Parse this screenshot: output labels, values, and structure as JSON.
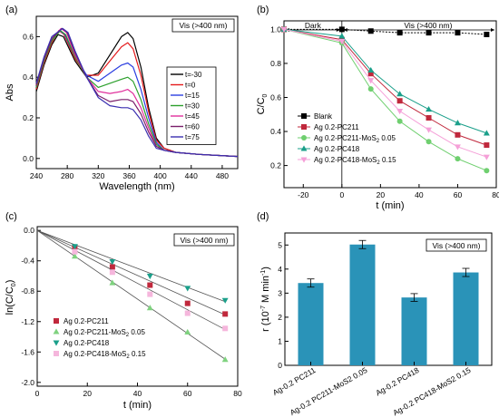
{
  "panels": [
    {
      "tag": "(a)",
      "chart_data": {
        "type": "line",
        "xlabel": "Wavelength (nm)",
        "ylabel": "Abs",
        "xlim": [
          240,
          500
        ],
        "ylim": [
          -0.05,
          0.7
        ],
        "xticks": [
          240,
          280,
          320,
          360,
          400,
          440,
          480
        ],
        "yticks": [
          0.0,
          0.2,
          0.4,
          0.6
        ],
        "ytick_labels": [
          "0.0",
          "0.2",
          "0.4",
          "0.6"
        ],
        "annotation": "Vis (>400 nm)",
        "legend": "center-right",
        "series": [
          {
            "name": "t=-30",
            "color": "#000000",
            "points": [
              [
                240,
                0.33
              ],
              [
                250,
                0.46
              ],
              [
                260,
                0.56
              ],
              [
                268,
                0.61
              ],
              [
                275,
                0.6
              ],
              [
                290,
                0.48
              ],
              [
                305,
                0.4
              ],
              [
                320,
                0.42
              ],
              [
                335,
                0.51
              ],
              [
                350,
                0.6
              ],
              [
                358,
                0.62
              ],
              [
                365,
                0.59
              ],
              [
                375,
                0.45
              ],
              [
                385,
                0.25
              ],
              [
                395,
                0.1
              ],
              [
                405,
                0.05
              ],
              [
                420,
                0.03
              ],
              [
                450,
                0.02
              ],
              [
                500,
                0.01
              ]
            ]
          },
          {
            "name": "t=0",
            "color": "#e41a1c",
            "points": [
              [
                240,
                0.34
              ],
              [
                250,
                0.47
              ],
              [
                260,
                0.57
              ],
              [
                269,
                0.63
              ],
              [
                276,
                0.61
              ],
              [
                290,
                0.49
              ],
              [
                305,
                0.41
              ],
              [
                320,
                0.41
              ],
              [
                335,
                0.48
              ],
              [
                350,
                0.55
              ],
              [
                358,
                0.57
              ],
              [
                365,
                0.54
              ],
              [
                375,
                0.41
              ],
              [
                385,
                0.23
              ],
              [
                395,
                0.09
              ],
              [
                405,
                0.05
              ],
              [
                420,
                0.03
              ],
              [
                450,
                0.02
              ],
              [
                500,
                0.01
              ]
            ]
          },
          {
            "name": "t=15",
            "color": "#2c3fe0",
            "points": [
              [
                240,
                0.35
              ],
              [
                250,
                0.48
              ],
              [
                260,
                0.58
              ],
              [
                270,
                0.63
              ],
              [
                277,
                0.61
              ],
              [
                290,
                0.5
              ],
              [
                305,
                0.41
              ],
              [
                320,
                0.38
              ],
              [
                335,
                0.42
              ],
              [
                350,
                0.46
              ],
              [
                358,
                0.47
              ],
              [
                365,
                0.45
              ],
              [
                375,
                0.34
              ],
              [
                385,
                0.2
              ],
              [
                395,
                0.08
              ],
              [
                405,
                0.04
              ],
              [
                420,
                0.03
              ],
              [
                450,
                0.02
              ],
              [
                500,
                0.01
              ]
            ]
          },
          {
            "name": "t=30",
            "color": "#2ca02c",
            "points": [
              [
                240,
                0.35
              ],
              [
                250,
                0.48
              ],
              [
                260,
                0.58
              ],
              [
                271,
                0.63
              ],
              [
                278,
                0.61
              ],
              [
                290,
                0.5
              ],
              [
                305,
                0.4
              ],
              [
                320,
                0.35
              ],
              [
                335,
                0.37
              ],
              [
                350,
                0.39
              ],
              [
                358,
                0.4
              ],
              [
                365,
                0.38
              ],
              [
                375,
                0.29
              ],
              [
                385,
                0.17
              ],
              [
                395,
                0.07
              ],
              [
                405,
                0.04
              ],
              [
                420,
                0.03
              ],
              [
                450,
                0.02
              ],
              [
                500,
                0.01
              ]
            ]
          },
          {
            "name": "t=45",
            "color": "#e0309c",
            "points": [
              [
                240,
                0.36
              ],
              [
                250,
                0.49
              ],
              [
                260,
                0.59
              ],
              [
                272,
                0.64
              ],
              [
                279,
                0.62
              ],
              [
                290,
                0.51
              ],
              [
                305,
                0.4
              ],
              [
                320,
                0.33
              ],
              [
                335,
                0.32
              ],
              [
                350,
                0.33
              ],
              [
                358,
                0.34
              ],
              [
                365,
                0.32
              ],
              [
                375,
                0.25
              ],
              [
                385,
                0.15
              ],
              [
                395,
                0.06
              ],
              [
                405,
                0.04
              ],
              [
                420,
                0.03
              ],
              [
                450,
                0.02
              ],
              [
                500,
                0.01
              ]
            ]
          },
          {
            "name": "t=60",
            "color": "#7a1f6a",
            "points": [
              [
                240,
                0.36
              ],
              [
                250,
                0.49
              ],
              [
                260,
                0.59
              ],
              [
                273,
                0.64
              ],
              [
                280,
                0.62
              ],
              [
                290,
                0.52
              ],
              [
                305,
                0.4
              ],
              [
                320,
                0.31
              ],
              [
                335,
                0.28
              ],
              [
                350,
                0.29
              ],
              [
                358,
                0.29
              ],
              [
                365,
                0.28
              ],
              [
                375,
                0.22
              ],
              [
                385,
                0.13
              ],
              [
                395,
                0.06
              ],
              [
                405,
                0.04
              ],
              [
                420,
                0.03
              ],
              [
                450,
                0.02
              ],
              [
                500,
                0.01
              ]
            ]
          },
          {
            "name": "t=75",
            "color": "#3a2fb0",
            "points": [
              [
                240,
                0.37
              ],
              [
                250,
                0.5
              ],
              [
                260,
                0.6
              ],
              [
                274,
                0.64
              ],
              [
                281,
                0.62
              ],
              [
                290,
                0.53
              ],
              [
                305,
                0.4
              ],
              [
                320,
                0.3
              ],
              [
                335,
                0.26
              ],
              [
                350,
                0.25
              ],
              [
                358,
                0.25
              ],
              [
                365,
                0.24
              ],
              [
                375,
                0.19
              ],
              [
                385,
                0.11
              ],
              [
                395,
                0.05
              ],
              [
                405,
                0.04
              ],
              [
                420,
                0.03
              ],
              [
                450,
                0.02
              ],
              [
                500,
                0.01
              ]
            ]
          }
        ]
      }
    },
    {
      "tag": "(b)",
      "chart_data": {
        "type": "line",
        "xlabel": "t (min)",
        "ylabel": "C/C",
        "ylabel_sub": "0",
        "xlim": [
          -30,
          80
        ],
        "ylim": [
          0.07,
          1.05
        ],
        "xticks": [
          -20,
          0,
          20,
          40,
          60,
          80
        ],
        "yticks": [
          0.2,
          0.4,
          0.6,
          0.8,
          1.0
        ],
        "ytick_labels": [
          "0.2",
          "0.4",
          "0.6",
          "0.8",
          "1.0"
        ],
        "dark_label": "Dark",
        "annotation": "Vis (>400 nm)",
        "legend": "bottom-left",
        "series": [
          {
            "name": "Blank",
            "sub": "",
            "suffix": "",
            "color": "#000000",
            "marker": "square",
            "x": [
              -30,
              0,
              15,
              30,
              45,
              60,
              75
            ],
            "y": [
              1.0,
              1.0,
              0.99,
              0.98,
              0.98,
              0.98,
              0.97
            ]
          },
          {
            "name": "Ag 0.2-PC211",
            "sub": "",
            "suffix": "",
            "color": "#c0283c",
            "marker": "square",
            "x": [
              -30,
              0,
              15,
              30,
              45,
              60,
              75
            ],
            "y": [
              1.0,
              0.94,
              0.74,
              0.58,
              0.48,
              0.38,
              0.32
            ]
          },
          {
            "name": "Ag 0.2-PC211-MoS",
            "sub": "2",
            "suffix": " 0.05",
            "color": "#6fcf6f",
            "marker": "circle",
            "x": [
              -30,
              0,
              15,
              30,
              45,
              60,
              75
            ],
            "y": [
              1.0,
              0.92,
              0.65,
              0.46,
              0.34,
              0.24,
              0.17
            ]
          },
          {
            "name": "Ag 0.2-PC418",
            "sub": "",
            "suffix": "",
            "color": "#1a9f8a",
            "marker": "triangle-up",
            "x": [
              -30,
              0,
              15,
              30,
              45,
              60,
              75
            ],
            "y": [
              1.0,
              0.96,
              0.76,
              0.62,
              0.53,
              0.45,
              0.39
            ]
          },
          {
            "name": "Ag 0.2-PC418-MoS",
            "sub": "2",
            "suffix": " 0.15",
            "color": "#f5a0d8",
            "marker": "triangle-down",
            "x": [
              -30,
              0,
              15,
              30,
              45,
              60,
              75
            ],
            "y": [
              1.0,
              0.93,
              0.7,
              0.52,
              0.41,
              0.31,
              0.25
            ]
          }
        ]
      }
    },
    {
      "tag": "(c)",
      "chart_data": {
        "type": "scatter",
        "xlabel": "t (min)",
        "ylabel": "ln(C/C",
        "ylabel_sub": "0",
        "ylabel_end": ")",
        "xlim": [
          0,
          80
        ],
        "ylim": [
          -2.05,
          0.05
        ],
        "xticks": [
          0,
          20,
          40,
          60,
          80
        ],
        "yticks": [
          0.0,
          -0.4,
          -0.8,
          -1.2,
          -1.6,
          -2.0
        ],
        "ytick_labels": [
          "0.0",
          "-0.4",
          "-0.8",
          "-1.2",
          "-1.6",
          "-2.0"
        ],
        "annotation": "Vis (>400 nm)",
        "legend": "bottom-left",
        "series": [
          {
            "name": "Ag 0.2-PC211",
            "sub": "",
            "suffix": "",
            "color": "#c0283c",
            "marker": "square",
            "x": [
              15,
              30,
              45,
              60,
              75
            ],
            "y": [
              -0.22,
              -0.48,
              -0.72,
              -0.96,
              -1.1
            ],
            "slope": -0.0148
          },
          {
            "name": "Ag 0.2-PC211-MoS",
            "sub": "2",
            "suffix": " 0.05",
            "color": "#7fd27f",
            "marker": "triangle-up",
            "x": [
              15,
              30,
              45,
              60,
              75
            ],
            "y": [
              -0.34,
              -0.69,
              -1.02,
              -1.34,
              -1.7
            ],
            "slope": -0.0226
          },
          {
            "name": "Ag 0.2-PC418",
            "sub": "",
            "suffix": "",
            "color": "#1a9f8a",
            "marker": "triangle-down",
            "x": [
              15,
              30,
              45,
              60,
              75
            ],
            "y": [
              -0.21,
              -0.41,
              -0.6,
              -0.76,
              -0.92
            ],
            "slope": -0.0125
          },
          {
            "name": "Ag 0.2-PC418-MoS",
            "sub": "2",
            "suffix": " 0.15",
            "color": "#f5b6dc",
            "marker": "square",
            "x": [
              15,
              30,
              45,
              60,
              75
            ],
            "y": [
              -0.28,
              -0.55,
              -0.84,
              -1.09,
              -1.29
            ],
            "slope": -0.0174
          }
        ]
      }
    },
    {
      "tag": "(d)",
      "chart_data": {
        "type": "bar",
        "ylabel": "r (10",
        "ylabel_sup": "-7",
        "ylabel_mid": " M min",
        "ylabel_sup2": "-1",
        "ylabel_end": ")",
        "ylim": [
          0,
          5.5
        ],
        "yticks": [
          0,
          1,
          2,
          3,
          4,
          5
        ],
        "ytick_labels": [
          "0",
          "1",
          "2",
          "3",
          "4",
          "5"
        ],
        "annotation": "Vis (>400 nm)",
        "categories": [
          "Ag-0.2 PC211",
          "Ag-0.2 PC211-MoS2 0.05",
          "Ag-0.2 PC418",
          "Ag-0.2 PC418-MoS2 0.15"
        ],
        "values": [
          3.42,
          5.02,
          2.82,
          3.86
        ],
        "errors": [
          0.17,
          0.17,
          0.16,
          0.17
        ],
        "bar_color": "#2a93b8"
      }
    }
  ]
}
